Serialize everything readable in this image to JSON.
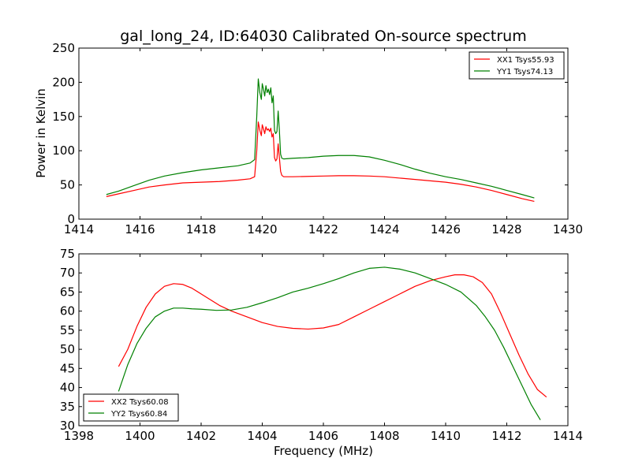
{
  "chart_data": [
    {
      "type": "line",
      "title": "gal_long_24, ID:64030 Calibrated On-source spectrum",
      "xlabel": "",
      "ylabel": "Power in Kelvin",
      "xlim": [
        1414,
        1430
      ],
      "ylim": [
        0,
        250
      ],
      "xticks": [
        1414,
        1416,
        1418,
        1420,
        1422,
        1424,
        1426,
        1428,
        1430
      ],
      "yticks": [
        0,
        50,
        100,
        150,
        200,
        250
      ],
      "legend_position": "top-right",
      "grid": false,
      "series": [
        {
          "name": "XX1 Tsys55.93",
          "color": "#ff0000",
          "x": [
            1414.9,
            1415.3,
            1415.8,
            1416.3,
            1416.8,
            1417.4,
            1418.0,
            1418.6,
            1419.2,
            1419.6,
            1419.75,
            1419.82,
            1419.87,
            1419.92,
            1419.97,
            1420.0,
            1420.04,
            1420.08,
            1420.12,
            1420.16,
            1420.2,
            1420.24,
            1420.28,
            1420.32,
            1420.36,
            1420.4,
            1420.44,
            1420.48,
            1420.52,
            1420.56,
            1420.6,
            1420.64,
            1420.7,
            1421.0,
            1421.5,
            1422.0,
            1422.5,
            1423.0,
            1423.5,
            1424.0,
            1424.5,
            1425.0,
            1425.5,
            1426.0,
            1426.5,
            1427.0,
            1427.5,
            1428.0,
            1428.5,
            1428.9
          ],
          "y": [
            33,
            37,
            42,
            47,
            50,
            53,
            54,
            55,
            57,
            59,
            62,
            100,
            142,
            130,
            122,
            138,
            132,
            125,
            135,
            130,
            132,
            128,
            133,
            120,
            125,
            90,
            85,
            88,
            110,
            90,
            70,
            64,
            62,
            62,
            62.5,
            63,
            63.5,
            63.5,
            63,
            62,
            60,
            58,
            56,
            54,
            51,
            47,
            42,
            36,
            30,
            26
          ]
        },
        {
          "name": "YY1 Tsys74.13",
          "color": "#008000",
          "x": [
            1414.9,
            1415.3,
            1415.8,
            1416.3,
            1416.8,
            1417.4,
            1418.0,
            1418.6,
            1419.2,
            1419.6,
            1419.75,
            1419.82,
            1419.87,
            1419.92,
            1419.97,
            1420.0,
            1420.04,
            1420.08,
            1420.12,
            1420.16,
            1420.2,
            1420.24,
            1420.28,
            1420.32,
            1420.36,
            1420.4,
            1420.44,
            1420.48,
            1420.52,
            1420.56,
            1420.6,
            1420.64,
            1420.7,
            1421.0,
            1421.5,
            1422.0,
            1422.5,
            1423.0,
            1423.5,
            1424.0,
            1424.5,
            1425.0,
            1425.5,
            1426.0,
            1426.5,
            1427.0,
            1427.5,
            1428.0,
            1428.5,
            1428.9
          ],
          "y": [
            36,
            41,
            49,
            57,
            63,
            68,
            72,
            75,
            78,
            82,
            87,
            150,
            205,
            185,
            175,
            198,
            190,
            180,
            195,
            185,
            190,
            182,
            192,
            170,
            180,
            130,
            125,
            128,
            158,
            130,
            95,
            89,
            88,
            89,
            90,
            92,
            93,
            93,
            91,
            86,
            80,
            73,
            67,
            62,
            58,
            53,
            48,
            42,
            36,
            31
          ]
        }
      ]
    },
    {
      "type": "line",
      "title": "",
      "xlabel": "Frequency (MHz)",
      "ylabel": "",
      "xlim": [
        1398,
        1414
      ],
      "ylim": [
        30,
        75
      ],
      "xticks": [
        1398,
        1400,
        1402,
        1404,
        1406,
        1408,
        1410,
        1412,
        1414
      ],
      "yticks": [
        30,
        35,
        40,
        45,
        50,
        55,
        60,
        65,
        70,
        75
      ],
      "legend_position": "bottom-left",
      "grid": false,
      "series": [
        {
          "name": "XX2 Tsys60.08",
          "color": "#ff0000",
          "x": [
            1399.3,
            1399.6,
            1399.9,
            1400.2,
            1400.5,
            1400.8,
            1401.1,
            1401.4,
            1401.7,
            1402.0,
            1402.3,
            1402.6,
            1403.0,
            1403.5,
            1404.0,
            1404.5,
            1405.0,
            1405.5,
            1406.0,
            1406.5,
            1407.0,
            1407.5,
            1408.0,
            1408.5,
            1409.0,
            1409.5,
            1410.0,
            1410.3,
            1410.6,
            1410.9,
            1411.2,
            1411.5,
            1411.8,
            1412.1,
            1412.4,
            1412.7,
            1413.0,
            1413.3
          ],
          "y": [
            45.5,
            50,
            56,
            61,
            64.5,
            66.5,
            67.2,
            67,
            66,
            64.5,
            63,
            61.5,
            60,
            58.5,
            57,
            56,
            55.5,
            55.3,
            55.6,
            56.5,
            58.5,
            60.5,
            62.5,
            64.5,
            66.5,
            68,
            69,
            69.5,
            69.5,
            69,
            67.5,
            64.5,
            59.5,
            54,
            48.5,
            43.5,
            39.5,
            37.5
          ]
        },
        {
          "name": "YY2 Tsys60.84",
          "color": "#008000",
          "x": [
            1399.3,
            1399.6,
            1399.9,
            1400.2,
            1400.5,
            1400.8,
            1401.1,
            1401.4,
            1401.7,
            1402.0,
            1402.5,
            1403.0,
            1403.5,
            1404.0,
            1404.5,
            1405.0,
            1405.5,
            1406.0,
            1406.5,
            1407.0,
            1407.5,
            1408.0,
            1408.5,
            1409.0,
            1409.5,
            1410.0,
            1410.5,
            1411.0,
            1411.3,
            1411.6,
            1411.9,
            1412.2,
            1412.5,
            1412.8,
            1413.1
          ],
          "y": [
            39,
            46,
            51.5,
            55.5,
            58.5,
            60,
            60.8,
            60.8,
            60.6,
            60.5,
            60.2,
            60.3,
            61,
            62.2,
            63.5,
            65,
            66,
            67.2,
            68.5,
            70,
            71.2,
            71.5,
            71,
            70,
            68.5,
            67,
            65,
            61.5,
            58.5,
            55,
            50.5,
            45.5,
            40.5,
            35.5,
            31.5
          ]
        }
      ]
    }
  ]
}
